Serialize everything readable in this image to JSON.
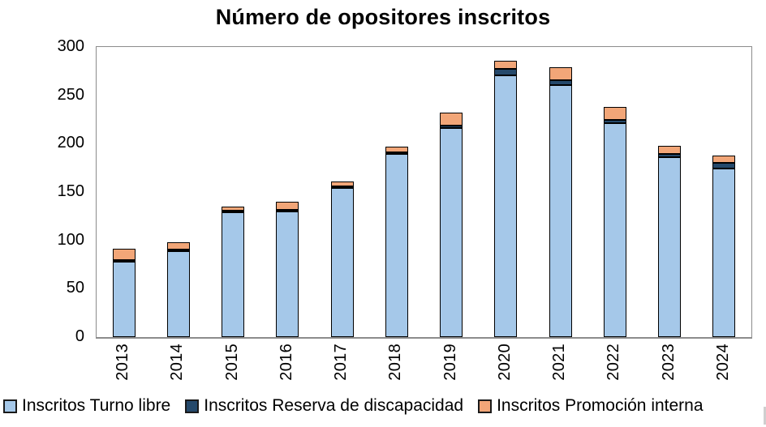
{
  "chart_data": {
    "type": "bar",
    "stacked": true,
    "title": "Número de opositores inscritos",
    "categories": [
      "2013",
      "2014",
      "2015",
      "2016",
      "2017",
      "2018",
      "2019",
      "2020",
      "2021",
      "2022",
      "2023",
      "2024"
    ],
    "series": [
      {
        "name": "Inscritos Turno libre",
        "color": "#A5C8E9",
        "values": [
          78,
          89,
          129,
          130,
          154,
          189,
          216,
          271,
          261,
          221,
          186,
          174
        ]
      },
      {
        "name": "Inscritos Reserva de discapacidad",
        "color": "#25496B",
        "values": [
          1,
          1,
          1,
          1,
          1,
          2,
          3,
          6,
          5,
          4,
          3,
          6
        ]
      },
      {
        "name": "Inscritos Promoción interna",
        "color": "#F2A678",
        "values": [
          12,
          7,
          4,
          8,
          5,
          6,
          13,
          9,
          13,
          13,
          9,
          8
        ]
      }
    ],
    "totals": [
      91,
      97,
      134,
      139,
      160,
      197,
      232,
      286,
      279,
      238,
      198,
      188
    ],
    "xlabel": "",
    "ylabel": "",
    "ylim": [
      0,
      300
    ],
    "y_ticks": [
      0,
      50,
      100,
      150,
      200,
      250,
      300
    ],
    "grid": false,
    "legend_position": "bottom",
    "colors": {
      "bar_border": "#000000",
      "axis_line": "#8C8C8C",
      "text": "#000000",
      "background": "#FFFFFF"
    }
  }
}
